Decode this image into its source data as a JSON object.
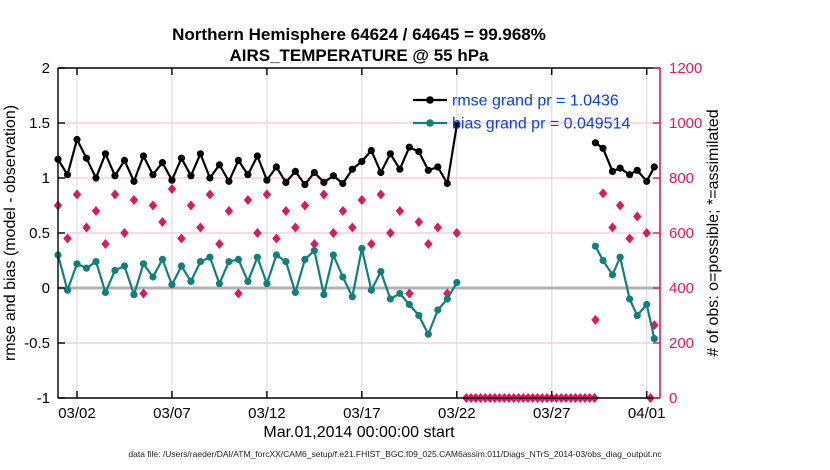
{
  "title": {
    "line1": "Northern Hemisphere 64624 / 64645 = 99.968%",
    "line2": "AIRS_TEMPERATURE @ 55 hPa"
  },
  "caption": "data file: /Users/raeder/DAI/ATM_forcXX/CAM6_setup/f.e21.FHIST_BGC.f09_025.CAM6assim.011/Diags_NTrS_2014-03/obs_diag_output.nc",
  "legend": {
    "items": [
      {
        "label": "rmse grand pr = 1.0436",
        "color": "#000000"
      },
      {
        "label": "bias grand pr = 0.049514",
        "color": "#12807a"
      }
    ],
    "text_color": "#0c3cf0"
  },
  "colors": {
    "rmse": "#000000",
    "bias": "#12807a",
    "obs": "#dc1960",
    "right_axis": "#dc1960",
    "legend_text": "#0c3cf0",
    "h_grid": "#f5c8d7",
    "v_grid": "#dedede",
    "zero_line": "#b3b3b3"
  },
  "chart_data": {
    "type": "line",
    "title": "Northern Hemisphere 64624 / 64645 = 99.968%",
    "subtitle": "AIRS_TEMPERATURE @ 55 hPa",
    "xlabel": "Mar.01,2014 00:00:00 start",
    "ylabel_left": "rmse and bias (model - observation)",
    "ylabel_right": "# of obs: o=possible; *=assimilated",
    "x_units": "days since Mar 01, 2014 00:00:00",
    "xlim_days": [
      0,
      31.7
    ],
    "ylim_left": [
      -1,
      2
    ],
    "ylim_right": [
      0,
      1200
    ],
    "grid": true,
    "legend_position": "top-right-inside",
    "x_ticks": {
      "t": [
        1,
        6,
        11,
        16,
        21,
        26,
        31
      ],
      "labels": [
        "03/02",
        "03/07",
        "03/12",
        "03/17",
        "03/22",
        "03/27",
        "04/01"
      ]
    },
    "y_ticks_left": [
      "-1",
      "-0.5",
      "0",
      "0.5",
      "1",
      "1.5",
      "2"
    ],
    "y_ticks_left_values": [
      -1,
      -0.5,
      0,
      0.5,
      1,
      1.5,
      2
    ],
    "y_ticks_right": [
      "0",
      "200",
      "400",
      "600",
      "800",
      "1000",
      "1200"
    ],
    "y_ticks_right_values": [
      0,
      200,
      400,
      600,
      800,
      1000,
      1200
    ],
    "series": [
      {
        "name": "rmse grand pr = 1.0436",
        "type": "line",
        "marker": "circle",
        "axis": "left",
        "color": "#000000",
        "segments": [
          {
            "t": {
              "start": 0,
              "step": 0.5,
              "n": 43
            },
            "v": [
              1.17,
              1.03,
              1.35,
              1.18,
              1.0,
              1.22,
              1.02,
              1.16,
              0.97,
              1.2,
              1.03,
              1.14,
              0.98,
              1.18,
              1.02,
              1.22,
              1.0,
              1.12,
              0.97,
              1.16,
              1.03,
              1.2,
              0.98,
              1.1,
              0.96,
              1.06,
              0.94,
              1.05,
              0.96,
              1.02,
              0.95,
              1.08,
              1.15,
              1.25,
              1.05,
              1.22,
              1.08,
              1.28,
              1.24,
              1.07,
              1.1,
              0.95,
              1.48
            ]
          },
          {
            "t": {
              "list": [
                28.3,
                28.7,
                29.2,
                29.6,
                30.1,
                30.5,
                31.0,
                31.4
              ]
            },
            "v": [
              1.32,
              1.27,
              1.06,
              1.09,
              1.03,
              1.07,
              0.97,
              1.1
            ]
          }
        ]
      },
      {
        "name": "bias grand pr = 0.049514",
        "type": "line",
        "marker": "circle",
        "axis": "left",
        "color": "#12807a",
        "segments": [
          {
            "t": {
              "start": 0,
              "step": 0.5,
              "n": 43
            },
            "v": [
              0.3,
              -0.02,
              0.22,
              0.18,
              0.24,
              -0.04,
              0.16,
              0.2,
              -0.06,
              0.22,
              0.1,
              0.26,
              0.03,
              0.2,
              0.06,
              0.24,
              0.28,
              0.04,
              0.24,
              0.26,
              0.06,
              0.28,
              0.04,
              0.3,
              0.24,
              -0.04,
              0.26,
              0.34,
              -0.06,
              0.3,
              0.1,
              -0.08,
              0.36,
              -0.02,
              0.15,
              -0.1,
              -0.05,
              -0.15,
              -0.25,
              -0.42,
              -0.2,
              -0.1,
              0.05
            ]
          },
          {
            "t": {
              "list": [
                28.3,
                28.7,
                29.2,
                29.6,
                30.1,
                30.5,
                31.0,
                31.4
              ]
            },
            "v": [
              0.38,
              0.25,
              0.12,
              0.28,
              -0.1,
              -0.25,
              -0.15,
              -0.46
            ]
          }
        ]
      },
      {
        "name": "# of obs (o=possible, *=assimilated; markers overlap)",
        "type": "scatter",
        "marker": "diamond-asterisk",
        "axis": "right",
        "color": "#dc1960",
        "segments": [
          {
            "t": {
              "start": 0,
              "step": 0.5,
              "n": 43
            },
            "v": [
              700,
              580,
              740,
              620,
              680,
              560,
              740,
              600,
              720,
              380,
              700,
              640,
              760,
              580,
              700,
              620,
              740,
              560,
              680,
              380,
              720,
              600,
              740,
              580,
              680,
              620,
              700,
              560,
              740,
              600,
              680,
              620,
              720,
              560,
              740,
              600,
              680,
              380,
              640,
              560,
              620,
              380,
              600
            ]
          },
          {
            "t": {
              "list": [
                28.3,
                28.7,
                29.2,
                29.6,
                30.1,
                30.5,
                31.0,
                31.4
              ]
            },
            "v": [
              284,
              744,
              620,
              700,
              580,
              660,
              600,
              265
            ]
          }
        ],
        "zero_bins": {
          "t": [
            21.5,
            21.75,
            22.0,
            22.25,
            22.5,
            22.75,
            23.0,
            23.25,
            23.5,
            23.75,
            24.0,
            24.25,
            24.5,
            24.75,
            25.0,
            25.25,
            25.5,
            25.75,
            26.0,
            26.25,
            26.5,
            26.75,
            27.0,
            27.25,
            27.5,
            27.75,
            28.0,
            28.25,
            31.2
          ],
          "v": 0
        }
      }
    ]
  }
}
